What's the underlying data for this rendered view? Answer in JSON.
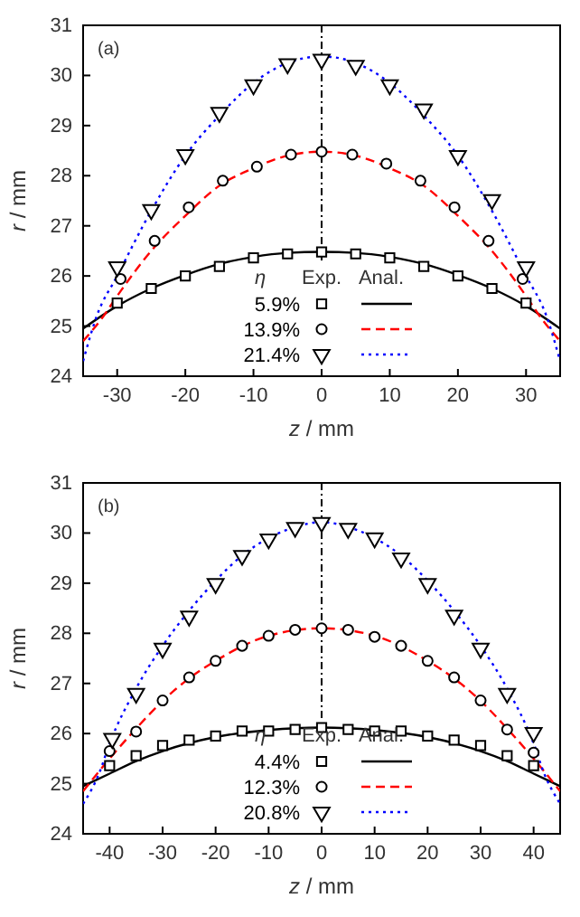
{
  "chart_data": [
    {
      "type": "scatter",
      "xlabel": "z / mm",
      "ylabel": "r / mm",
      "legend_title": "η",
      "legend": "bottom",
      "annotations": [
        "(a)",
        "Exp.",
        "Anal."
      ],
      "xlim": [
        -35,
        35
      ],
      "xticks": [
        -30,
        -20,
        -10,
        0,
        10,
        20,
        30
      ],
      "ylim": [
        24,
        31
      ],
      "yticks": [
        24,
        25,
        26,
        27,
        28,
        29,
        30,
        31
      ],
      "ref_lines": [
        {
          "axis": "x",
          "value": 0,
          "line_style": "dashed",
          "color": "#000000"
        }
      ],
      "series": [
        {
          "name": "5.9%",
          "marker": "square",
          "color": "#000000",
          "x": [
            -30,
            -25,
            -20,
            -15,
            -10,
            -5,
            0,
            5,
            10,
            15,
            20,
            25,
            30
          ],
          "values": [
            25.46,
            25.75,
            26.0,
            26.19,
            26.36,
            26.44,
            26.48,
            26.44,
            26.36,
            26.19,
            26.0,
            25.75,
            25.46
          ]
        },
        {
          "name": "13.9%",
          "marker": "circle",
          "color": "#000000",
          "x": [
            -29.5,
            -24.5,
            -19.5,
            -14.5,
            -9.5,
            -4.5,
            0,
            4.5,
            9.5,
            14.5,
            19.5,
            24.5,
            29.5
          ],
          "values": [
            25.94,
            26.7,
            27.37,
            27.9,
            28.18,
            28.42,
            28.48,
            28.42,
            28.24,
            27.9,
            27.37,
            26.7,
            25.94
          ]
        },
        {
          "name": "21.4%",
          "marker": "triangle",
          "color": "#000000",
          "x": [
            -30,
            -25,
            -20,
            -15,
            -10,
            -5,
            0,
            5,
            10,
            15,
            20,
            25,
            30
          ],
          "values": [
            26.18,
            27.32,
            28.42,
            29.26,
            29.81,
            30.23,
            30.32,
            30.2,
            29.81,
            29.33,
            28.4,
            27.52,
            26.18
          ]
        },
        {
          "type": "line",
          "line_style": "solid",
          "color": "#000000",
          "x": [
            -35,
            -30,
            -25,
            -20,
            -15,
            -10,
            -5,
            0,
            5,
            10,
            15,
            20,
            25,
            30,
            35
          ],
          "values": [
            24.95,
            25.4,
            25.75,
            26.02,
            26.24,
            26.38,
            26.46,
            26.48,
            26.46,
            26.38,
            26.24,
            26.02,
            25.75,
            25.4,
            24.95
          ]
        },
        {
          "type": "line",
          "line_style": "dashed",
          "color": "#ff0000",
          "x": [
            -35,
            -32,
            -30,
            -25,
            -20,
            -15,
            -10,
            -5,
            0,
            5,
            10,
            15,
            20,
            25,
            30,
            32,
            35
          ],
          "values": [
            24.7,
            25.2,
            25.6,
            26.5,
            27.2,
            27.8,
            28.15,
            28.4,
            28.48,
            28.4,
            28.15,
            27.8,
            27.2,
            26.5,
            25.6,
            25.2,
            24.7
          ]
        },
        {
          "type": "line",
          "line_style": "dotted",
          "color": "#0000ff",
          "x": [
            -35,
            -33,
            -30,
            -25,
            -20,
            -15,
            -10,
            -5,
            0,
            5,
            10,
            15,
            20,
            25,
            30,
            33,
            35
          ],
          "values": [
            24.3,
            25.2,
            26.0,
            27.3,
            28.4,
            29.2,
            29.85,
            30.25,
            30.38,
            30.25,
            29.85,
            29.2,
            28.4,
            27.3,
            26.0,
            25.2,
            24.3
          ]
        }
      ]
    },
    {
      "type": "scatter",
      "xlabel": "z / mm",
      "ylabel": "r / mm",
      "legend_title": "η",
      "legend": "bottom",
      "annotations": [
        "(b)",
        "Exp.",
        "Anal."
      ],
      "xlim": [
        -45,
        45
      ],
      "xticks": [
        -40,
        -30,
        -20,
        -10,
        0,
        10,
        20,
        30,
        40
      ],
      "ylim": [
        24,
        31
      ],
      "yticks": [
        24,
        25,
        26,
        27,
        28,
        29,
        30,
        31
      ],
      "ref_lines": [
        {
          "axis": "x",
          "value": 0,
          "line_style": "dashed",
          "color": "#000000"
        }
      ],
      "series": [
        {
          "name": "4.4%",
          "marker": "square",
          "color": "#000000",
          "x": [
            -40,
            -35,
            -30,
            -25,
            -20,
            -15,
            -10,
            -5,
            0,
            5,
            10,
            15,
            20,
            25,
            30,
            35,
            40
          ],
          "values": [
            25.36,
            25.56,
            25.76,
            25.87,
            25.95,
            26.05,
            26.05,
            26.08,
            26.12,
            26.08,
            26.05,
            26.05,
            25.95,
            25.87,
            25.76,
            25.56,
            25.36
          ]
        },
        {
          "name": "12.3%",
          "marker": "circle",
          "color": "#000000",
          "x": [
            -40,
            -35,
            -30,
            -25,
            -20,
            -15,
            -10,
            -5,
            0,
            5,
            10,
            15,
            20,
            25,
            30,
            35,
            40
          ],
          "values": [
            25.65,
            26.04,
            26.66,
            27.12,
            27.45,
            27.75,
            27.95,
            28.07,
            28.1,
            28.07,
            27.93,
            27.75,
            27.45,
            27.12,
            26.66,
            26.08,
            25.62
          ]
        },
        {
          "name": "20.8%",
          "marker": "triangle",
          "color": "#000000",
          "x": [
            -39.5,
            -35,
            -30,
            -25,
            -20,
            -15,
            -10,
            -5,
            0,
            5,
            10,
            15,
            20,
            25,
            30,
            35,
            40
          ],
          "values": [
            25.9,
            26.8,
            27.7,
            28.34,
            28.99,
            29.55,
            29.88,
            30.11,
            30.21,
            30.09,
            29.9,
            29.5,
            28.99,
            28.36,
            27.7,
            26.8,
            26.02
          ]
        },
        {
          "type": "line",
          "line_style": "solid",
          "color": "#000000",
          "x": [
            -45,
            -40,
            -35,
            -30,
            -20,
            -10,
            0,
            10,
            20,
            30,
            35,
            40,
            45
          ],
          "values": [
            24.95,
            25.2,
            25.45,
            25.65,
            25.93,
            26.07,
            26.12,
            26.07,
            25.93,
            25.65,
            25.45,
            25.2,
            24.95
          ]
        },
        {
          "type": "line",
          "line_style": "dashed",
          "color": "#ff0000",
          "x": [
            -45,
            -40,
            -35,
            -30,
            -25,
            -20,
            -10,
            0,
            10,
            20,
            25,
            30,
            35,
            40,
            45
          ],
          "values": [
            24.85,
            25.5,
            26.1,
            26.65,
            27.1,
            27.45,
            27.95,
            28.1,
            27.95,
            27.45,
            27.1,
            26.65,
            26.1,
            25.5,
            24.85
          ]
        },
        {
          "type": "line",
          "line_style": "dotted",
          "color": "#0000ff",
          "x": [
            -45,
            -42,
            -40,
            -35,
            -30,
            -25,
            -20,
            -15,
            -10,
            -5,
            0,
            5,
            10,
            15,
            20,
            25,
            30,
            35,
            40,
            42,
            45
          ],
          "values": [
            24.6,
            25.2,
            25.8,
            26.9,
            27.75,
            28.45,
            29.05,
            29.55,
            29.9,
            30.12,
            30.22,
            30.12,
            29.9,
            29.55,
            29.05,
            28.45,
            27.75,
            26.9,
            25.8,
            25.2,
            24.6
          ]
        }
      ]
    }
  ]
}
